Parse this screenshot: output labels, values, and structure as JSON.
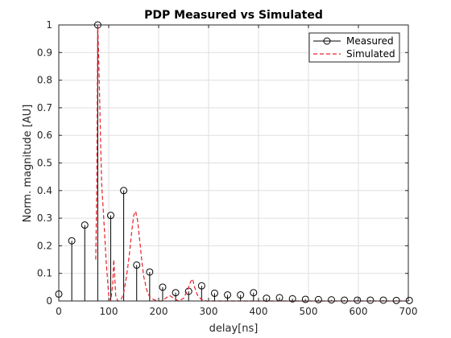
{
  "chart_data": {
    "type": "line",
    "title": "PDP Measured vs Simulated",
    "xlabel": "delay[ns]",
    "ylabel": "Norm. magnitude [AU]",
    "xlim": [
      0,
      700
    ],
    "ylim": [
      0,
      1
    ],
    "x_ticks": [
      "0",
      "100",
      "200",
      "300",
      "400",
      "500",
      "600",
      "700"
    ],
    "y_ticks": [
      "0",
      "0.1",
      "0.2",
      "0.3",
      "0.4",
      "0.5",
      "0.6",
      "0.7",
      "0.8",
      "0.9",
      "1"
    ],
    "grid": true,
    "legend_position": "top-right",
    "series": [
      {
        "name": "Measured",
        "style": "stem",
        "color": "#000000",
        "marker": "circle",
        "x": [
          0,
          26,
          52,
          78,
          104,
          130,
          156,
          182,
          208,
          234,
          260,
          286,
          312,
          338,
          364,
          390,
          416,
          442,
          468,
          494,
          520,
          546,
          572,
          598,
          624,
          650,
          676,
          702
        ],
        "y": [
          0.025,
          0.218,
          0.275,
          1.0,
          0.31,
          0.4,
          0.13,
          0.105,
          0.05,
          0.03,
          0.035,
          0.055,
          0.028,
          0.022,
          0.022,
          0.03,
          0.01,
          0.012,
          0.008,
          0.006,
          0.005,
          0.004,
          0.003,
          0.003,
          0.003,
          0.003,
          0.002,
          0.002
        ]
      },
      {
        "name": "Simulated",
        "style": "dashed",
        "color": "#e8202a",
        "x": [
          74,
          76,
          78,
          80,
          82,
          84,
          86,
          90,
          95,
          100,
          104,
          108,
          110,
          112,
          114,
          118,
          122,
          126,
          130,
          134,
          138,
          142,
          146,
          150,
          154,
          158,
          162,
          166,
          170,
          176,
          182,
          190,
          198,
          206,
          214,
          222,
          230,
          240,
          250,
          258,
          264,
          268,
          272,
          278,
          286,
          296,
          310,
          330,
          360,
          400,
          450,
          500,
          560,
          620,
          700
        ],
        "y": [
          0.15,
          0.4,
          1.0,
          0.88,
          0.72,
          0.55,
          0.42,
          0.3,
          0.14,
          0.02,
          0.0,
          0.06,
          0.15,
          0.09,
          0.02,
          0.0,
          0.0,
          0.01,
          0.03,
          0.07,
          0.12,
          0.18,
          0.25,
          0.31,
          0.325,
          0.29,
          0.22,
          0.15,
          0.09,
          0.04,
          0.015,
          0.005,
          0.0,
          0.0,
          0.01,
          0.02,
          0.01,
          0.0,
          0.01,
          0.04,
          0.07,
          0.08,
          0.05,
          0.02,
          0.005,
          0.0,
          0.0,
          0.0,
          0.0,
          0.0,
          0.0,
          0.0,
          0.0,
          0.0,
          0.0
        ]
      }
    ]
  }
}
